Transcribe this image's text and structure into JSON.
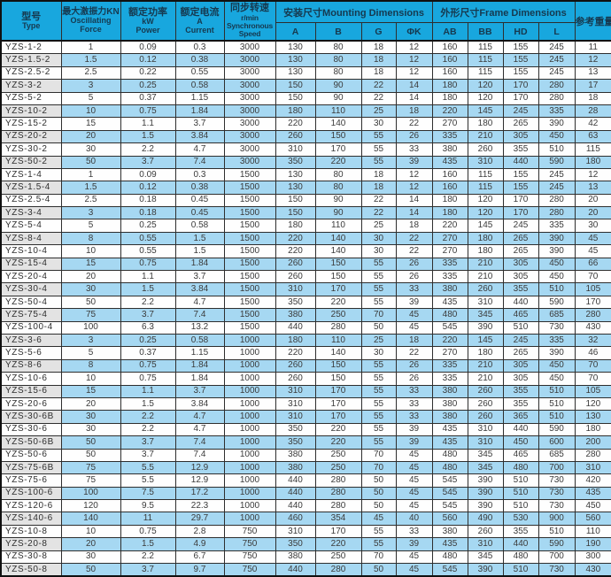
{
  "colors": {
    "header_bg": "#18a7de",
    "header_text": "#16394f",
    "row_alt_bg": "#a6d8f2",
    "type_col_alt_bg": "#e3e3e3",
    "grid_border": "#2e2e2e"
  },
  "header": {
    "type_zh": "型号",
    "type_en": "Type",
    "force_zh": "最大激振力KN",
    "force_en1": "Oscillating",
    "force_en2": "Force",
    "power_zh": "额定功率",
    "power_en1": "kW",
    "power_en2": "Power",
    "current_zh": "额定电流",
    "current_en1": "A",
    "current_en2": "Current",
    "speed_zh": "同步转速",
    "speed_unit": "r/min",
    "speed_en1": "Synchronous",
    "speed_en2": "Speed",
    "mounting_group": "安装尺寸Mounting Dimensions",
    "frame_group": "外形尺寸Frame Dimensions",
    "weight": "参考重量",
    "subcols": [
      "A",
      "B",
      "G",
      "ΦK",
      "AB",
      "BB",
      "HD",
      "L"
    ]
  },
  "chart_data": {
    "type": "table",
    "columns": [
      "型号 Type",
      "最大激振力KN Oscillating Force",
      "额定功率 kW Power",
      "额定电流 A Current",
      "同步转速 r/min Synchronous Speed",
      "A",
      "B",
      "G",
      "ΦK",
      "AB",
      "BB",
      "HD",
      "L",
      "参考重量"
    ],
    "column_groups": [
      {
        "label": "安装尺寸Mounting Dimensions",
        "columns": [
          "A",
          "B",
          "G",
          "ΦK"
        ]
      },
      {
        "label": "外形尺寸Frame Dimensions",
        "columns": [
          "AB",
          "BB",
          "HD",
          "L"
        ]
      }
    ],
    "rows": [
      [
        "YZS-1-2",
        "1",
        "0.09",
        "0.3",
        "3000",
        "130",
        "80",
        "18",
        "12",
        "160",
        "115",
        "155",
        "245",
        "11"
      ],
      [
        "YZS-1.5-2",
        "1.5",
        "0.12",
        "0.38",
        "3000",
        "130",
        "80",
        "18",
        "12",
        "160",
        "115",
        "155",
        "245",
        "12"
      ],
      [
        "YZS-2.5-2",
        "2.5",
        "0.22",
        "0.55",
        "3000",
        "130",
        "80",
        "18",
        "12",
        "160",
        "115",
        "155",
        "245",
        "13"
      ],
      [
        "YZS-3-2",
        "3",
        "0.25",
        "0.58",
        "3000",
        "150",
        "90",
        "22",
        "14",
        "180",
        "120",
        "170",
        "280",
        "17"
      ],
      [
        "YZS-5-2",
        "5",
        "0.37",
        "1.15",
        "3000",
        "150",
        "90",
        "22",
        "14",
        "180",
        "120",
        "170",
        "280",
        "18"
      ],
      [
        "YZS-10-2",
        "10",
        "0.75",
        "1.84",
        "3000",
        "180",
        "110",
        "25",
        "18",
        "220",
        "145",
        "245",
        "335",
        "28"
      ],
      [
        "YZS-15-2",
        "15",
        "1.1",
        "3.7",
        "3000",
        "220",
        "140",
        "30",
        "22",
        "270",
        "180",
        "265",
        "390",
        "42"
      ],
      [
        "YZS-20-2",
        "20",
        "1.5",
        "3.84",
        "3000",
        "260",
        "150",
        "55",
        "26",
        "335",
        "210",
        "305",
        "450",
        "63"
      ],
      [
        "YZS-30-2",
        "30",
        "2.2",
        "4.7",
        "3000",
        "310",
        "170",
        "55",
        "33",
        "380",
        "260",
        "355",
        "510",
        "115"
      ],
      [
        "YZS-50-2",
        "50",
        "3.7",
        "7.4",
        "3000",
        "350",
        "220",
        "55",
        "39",
        "435",
        "310",
        "440",
        "590",
        "180"
      ],
      [
        "YZS-1-4",
        "1",
        "0.09",
        "0.3",
        "1500",
        "130",
        "80",
        "18",
        "12",
        "160",
        "115",
        "155",
        "245",
        "12"
      ],
      [
        "YZS-1.5-4",
        "1.5",
        "0.12",
        "0.38",
        "1500",
        "130",
        "80",
        "18",
        "12",
        "160",
        "115",
        "155",
        "245",
        "13"
      ],
      [
        "YZS-2.5-4",
        "2.5",
        "0.18",
        "0.45",
        "1500",
        "150",
        "90",
        "22",
        "14",
        "180",
        "120",
        "170",
        "280",
        "20"
      ],
      [
        "YZS-3-4",
        "3",
        "0.18",
        "0.45",
        "1500",
        "150",
        "90",
        "22",
        "14",
        "180",
        "120",
        "170",
        "280",
        "20"
      ],
      [
        "YZS-5-4",
        "5",
        "0.25",
        "0.58",
        "1500",
        "180",
        "110",
        "25",
        "18",
        "220",
        "145",
        "245",
        "335",
        "30"
      ],
      [
        "YZS-8-4",
        "8",
        "0.55",
        "1.5",
        "1500",
        "220",
        "140",
        "30",
        "22",
        "270",
        "180",
        "265",
        "390",
        "45"
      ],
      [
        "YZS-10-4",
        "10",
        "0.55",
        "1.5",
        "1500",
        "220",
        "140",
        "30",
        "22",
        "270",
        "180",
        "265",
        "390",
        "45"
      ],
      [
        "YZS-15-4",
        "15",
        "0.75",
        "1.84",
        "1500",
        "260",
        "150",
        "55",
        "26",
        "335",
        "210",
        "305",
        "450",
        "66"
      ],
      [
        "YZS-20-4",
        "20",
        "1.1",
        "3.7",
        "1500",
        "260",
        "150",
        "55",
        "26",
        "335",
        "210",
        "305",
        "450",
        "70"
      ],
      [
        "YZS-30-4",
        "30",
        "1.5",
        "3.84",
        "1500",
        "310",
        "170",
        "55",
        "33",
        "380",
        "260",
        "355",
        "510",
        "105"
      ],
      [
        "YZS-50-4",
        "50",
        "2.2",
        "4.7",
        "1500",
        "350",
        "220",
        "55",
        "39",
        "435",
        "310",
        "440",
        "590",
        "170"
      ],
      [
        "YZS-75-4",
        "75",
        "3.7",
        "7.4",
        "1500",
        "380",
        "250",
        "70",
        "45",
        "480",
        "345",
        "465",
        "685",
        "280"
      ],
      [
        "YZS-100-4",
        "100",
        "6.3",
        "13.2",
        "1500",
        "440",
        "280",
        "50",
        "45",
        "545",
        "390",
        "510",
        "730",
        "430"
      ],
      [
        "YZS-3-6",
        "3",
        "0.25",
        "0.58",
        "1000",
        "180",
        "110",
        "25",
        "18",
        "220",
        "145",
        "245",
        "335",
        "32"
      ],
      [
        "YZS-5-6",
        "5",
        "0.37",
        "1.15",
        "1000",
        "220",
        "140",
        "30",
        "22",
        "270",
        "180",
        "265",
        "390",
        "46"
      ],
      [
        "YZS-8-6",
        "8",
        "0.75",
        "1.84",
        "1000",
        "260",
        "150",
        "55",
        "26",
        "335",
        "210",
        "305",
        "450",
        "70"
      ],
      [
        "YZS-10-6",
        "10",
        "0.75",
        "1.84",
        "1000",
        "260",
        "150",
        "55",
        "26",
        "335",
        "210",
        "305",
        "450",
        "70"
      ],
      [
        "YZS-15-6",
        "15",
        "1.1",
        "3.7",
        "1000",
        "310",
        "170",
        "55",
        "33",
        "380",
        "260",
        "355",
        "510",
        "105"
      ],
      [
        "YZS-20-6",
        "20",
        "1.5",
        "3.84",
        "1000",
        "310",
        "170",
        "55",
        "33",
        "380",
        "260",
        "355",
        "510",
        "120"
      ],
      [
        "YZS-30-6B",
        "30",
        "2.2",
        "4.7",
        "1000",
        "310",
        "170",
        "55",
        "33",
        "380",
        "260",
        "365",
        "510",
        "130"
      ],
      [
        "YZS-30-6",
        "30",
        "2.2",
        "4.7",
        "1000",
        "350",
        "220",
        "55",
        "39",
        "435",
        "310",
        "440",
        "590",
        "180"
      ],
      [
        "YZS-50-6B",
        "50",
        "3.7",
        "7.4",
        "1000",
        "350",
        "220",
        "55",
        "39",
        "435",
        "310",
        "450",
        "600",
        "200"
      ],
      [
        "YZS-50-6",
        "50",
        "3.7",
        "7.4",
        "1000",
        "380",
        "250",
        "70",
        "45",
        "480",
        "345",
        "465",
        "685",
        "280"
      ],
      [
        "YZS-75-6B",
        "75",
        "5.5",
        "12.9",
        "1000",
        "380",
        "250",
        "70",
        "45",
        "480",
        "345",
        "480",
        "700",
        "310"
      ],
      [
        "YZS-75-6",
        "75",
        "5.5",
        "12.9",
        "1000",
        "440",
        "280",
        "50",
        "45",
        "545",
        "390",
        "510",
        "730",
        "420"
      ],
      [
        "YZS-100-6",
        "100",
        "7.5",
        "17.2",
        "1000",
        "440",
        "280",
        "50",
        "45",
        "545",
        "390",
        "510",
        "730",
        "435"
      ],
      [
        "YZS-120-6",
        "120",
        "9.5",
        "22.3",
        "1000",
        "440",
        "280",
        "50",
        "45",
        "545",
        "390",
        "510",
        "730",
        "450"
      ],
      [
        "YZS-140-6",
        "140",
        "11",
        "29.7",
        "1000",
        "460",
        "354",
        "45",
        "40",
        "560",
        "490",
        "530",
        "900",
        "560"
      ],
      [
        "YZS-10-8",
        "10",
        "0.75",
        "2.8",
        "750",
        "310",
        "170",
        "55",
        "33",
        "380",
        "260",
        "355",
        "510",
        "110"
      ],
      [
        "YZS-20-8",
        "20",
        "1.5",
        "4.9",
        "750",
        "350",
        "220",
        "55",
        "39",
        "435",
        "310",
        "440",
        "590",
        "190"
      ],
      [
        "YZS-30-8",
        "30",
        "2.2",
        "6.7",
        "750",
        "380",
        "250",
        "70",
        "45",
        "480",
        "345",
        "480",
        "700",
        "300"
      ],
      [
        "YZS-50-8",
        "50",
        "3.7",
        "9.7",
        "750",
        "440",
        "280",
        "50",
        "45",
        "545",
        "390",
        "510",
        "730",
        "430"
      ]
    ]
  }
}
